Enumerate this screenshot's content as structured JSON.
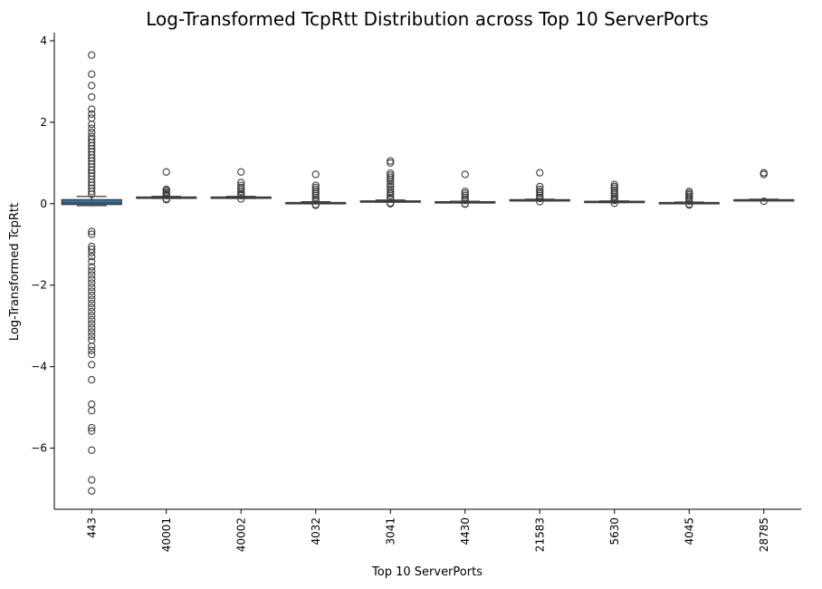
{
  "chart_data": {
    "type": "box",
    "title": "Log-Transformed TcpRtt Distribution across Top 10 ServerPorts",
    "xlabel": "Top 10 ServerPorts",
    "ylabel": "Log-Transformed TcpRtt",
    "categories": [
      "443",
      "40001",
      "40002",
      "4032",
      "3041",
      "4430",
      "21583",
      "5630",
      "4045",
      "28785"
    ],
    "ylim": [
      -7.5,
      4.2
    ],
    "yticks": [
      -6,
      -4,
      -2,
      0,
      2,
      4
    ],
    "ytick_labels": [
      "−6",
      "−4",
      "−2",
      "0",
      "2",
      "4"
    ],
    "grid": false,
    "box_color": "#3274a1",
    "edge_color": "#3d3d3d",
    "boxes": [
      {
        "category": "443",
        "whislo": -0.05,
        "q1": -0.02,
        "med": 0.02,
        "q3": 0.1,
        "whishi": 0.18,
        "fliers_high": [
          3.65,
          3.18,
          2.9,
          2.62,
          2.32,
          2.2,
          2.1,
          1.95,
          1.85,
          1.75,
          1.65,
          1.58,
          1.5,
          1.42,
          1.35,
          1.28,
          1.2,
          1.12,
          1.05,
          0.98,
          0.9,
          0.82,
          0.75,
          0.68,
          0.6,
          0.52,
          0.45,
          0.38,
          0.3,
          0.23
        ],
        "fliers_low": [
          -0.68,
          -0.75,
          -1.05,
          -1.12,
          -1.2,
          -1.3,
          -1.42,
          -1.55,
          -1.65,
          -1.75,
          -1.85,
          -1.95,
          -2.05,
          -2.15,
          -2.25,
          -2.35,
          -2.45,
          -2.55,
          -2.65,
          -2.75,
          -2.85,
          -2.95,
          -3.05,
          -3.15,
          -3.25,
          -3.35,
          -3.5,
          -3.6,
          -3.7,
          -3.95,
          -4.32,
          -4.92,
          -5.08,
          -5.5,
          -5.58,
          -6.05,
          -6.78,
          -7.05
        ]
      },
      {
        "category": "40001",
        "whislo": 0.13,
        "q1": 0.14,
        "med": 0.155,
        "q3": 0.165,
        "whishi": 0.18,
        "fliers_high": [
          0.78,
          0.35,
          0.32,
          0.28,
          0.25,
          0.22,
          0.2
        ],
        "fliers_low": [
          0.12,
          0.1
        ]
      },
      {
        "category": "40002",
        "whislo": 0.13,
        "q1": 0.14,
        "med": 0.155,
        "q3": 0.165,
        "whishi": 0.18,
        "fliers_high": [
          0.78,
          0.52,
          0.45,
          0.4,
          0.35,
          0.3,
          0.25,
          0.22,
          0.2
        ],
        "fliers_low": [
          0.12
        ]
      },
      {
        "category": "4032",
        "whislo": 0.0,
        "q1": 0.01,
        "med": 0.02,
        "q3": 0.03,
        "whishi": 0.05,
        "fliers_high": [
          0.72,
          0.45,
          0.4,
          0.35,
          0.3,
          0.25,
          0.2,
          0.15,
          0.1,
          0.07
        ],
        "fliers_low": [
          -0.02,
          -0.04
        ]
      },
      {
        "category": "3041",
        "whislo": 0.04,
        "q1": 0.05,
        "med": 0.06,
        "q3": 0.07,
        "whishi": 0.09,
        "fliers_high": [
          1.05,
          1.0,
          0.75,
          0.7,
          0.65,
          0.6,
          0.55,
          0.48,
          0.42,
          0.36,
          0.3,
          0.25,
          0.2,
          0.15,
          0.12
        ],
        "fliers_low": [
          0.02,
          0.0
        ]
      },
      {
        "category": "4430",
        "whislo": 0.02,
        "q1": 0.03,
        "med": 0.04,
        "q3": 0.05,
        "whishi": 0.06,
        "fliers_high": [
          0.72,
          0.3,
          0.25,
          0.2,
          0.15,
          0.1,
          0.08
        ],
        "fliers_low": [
          0.0,
          -0.01
        ]
      },
      {
        "category": "21583",
        "whislo": 0.07,
        "q1": 0.08,
        "med": 0.09,
        "q3": 0.1,
        "whishi": 0.11,
        "fliers_high": [
          0.76,
          0.42,
          0.35,
          0.3,
          0.25,
          0.2,
          0.15,
          0.13
        ],
        "fliers_low": [
          0.05
        ]
      },
      {
        "category": "5630",
        "whislo": 0.03,
        "q1": 0.04,
        "med": 0.05,
        "q3": 0.06,
        "whishi": 0.07,
        "fliers_high": [
          0.47,
          0.42,
          0.38,
          0.33,
          0.28,
          0.23,
          0.18,
          0.14,
          0.1,
          0.08
        ],
        "fliers_low": [
          0.01
        ]
      },
      {
        "category": "4045",
        "whislo": 0.0,
        "q1": 0.01,
        "med": 0.02,
        "q3": 0.03,
        "whishi": 0.04,
        "fliers_high": [
          0.3,
          0.26,
          0.22,
          0.18,
          0.14,
          0.1,
          0.06
        ],
        "fliers_low": [
          -0.01,
          -0.03
        ]
      },
      {
        "category": "28785",
        "whislo": 0.08,
        "q1": 0.09,
        "med": 0.095,
        "q3": 0.1,
        "whishi": 0.11,
        "fliers_high": [
          0.76,
          0.72
        ],
        "fliers_low": [
          0.06
        ]
      }
    ]
  }
}
